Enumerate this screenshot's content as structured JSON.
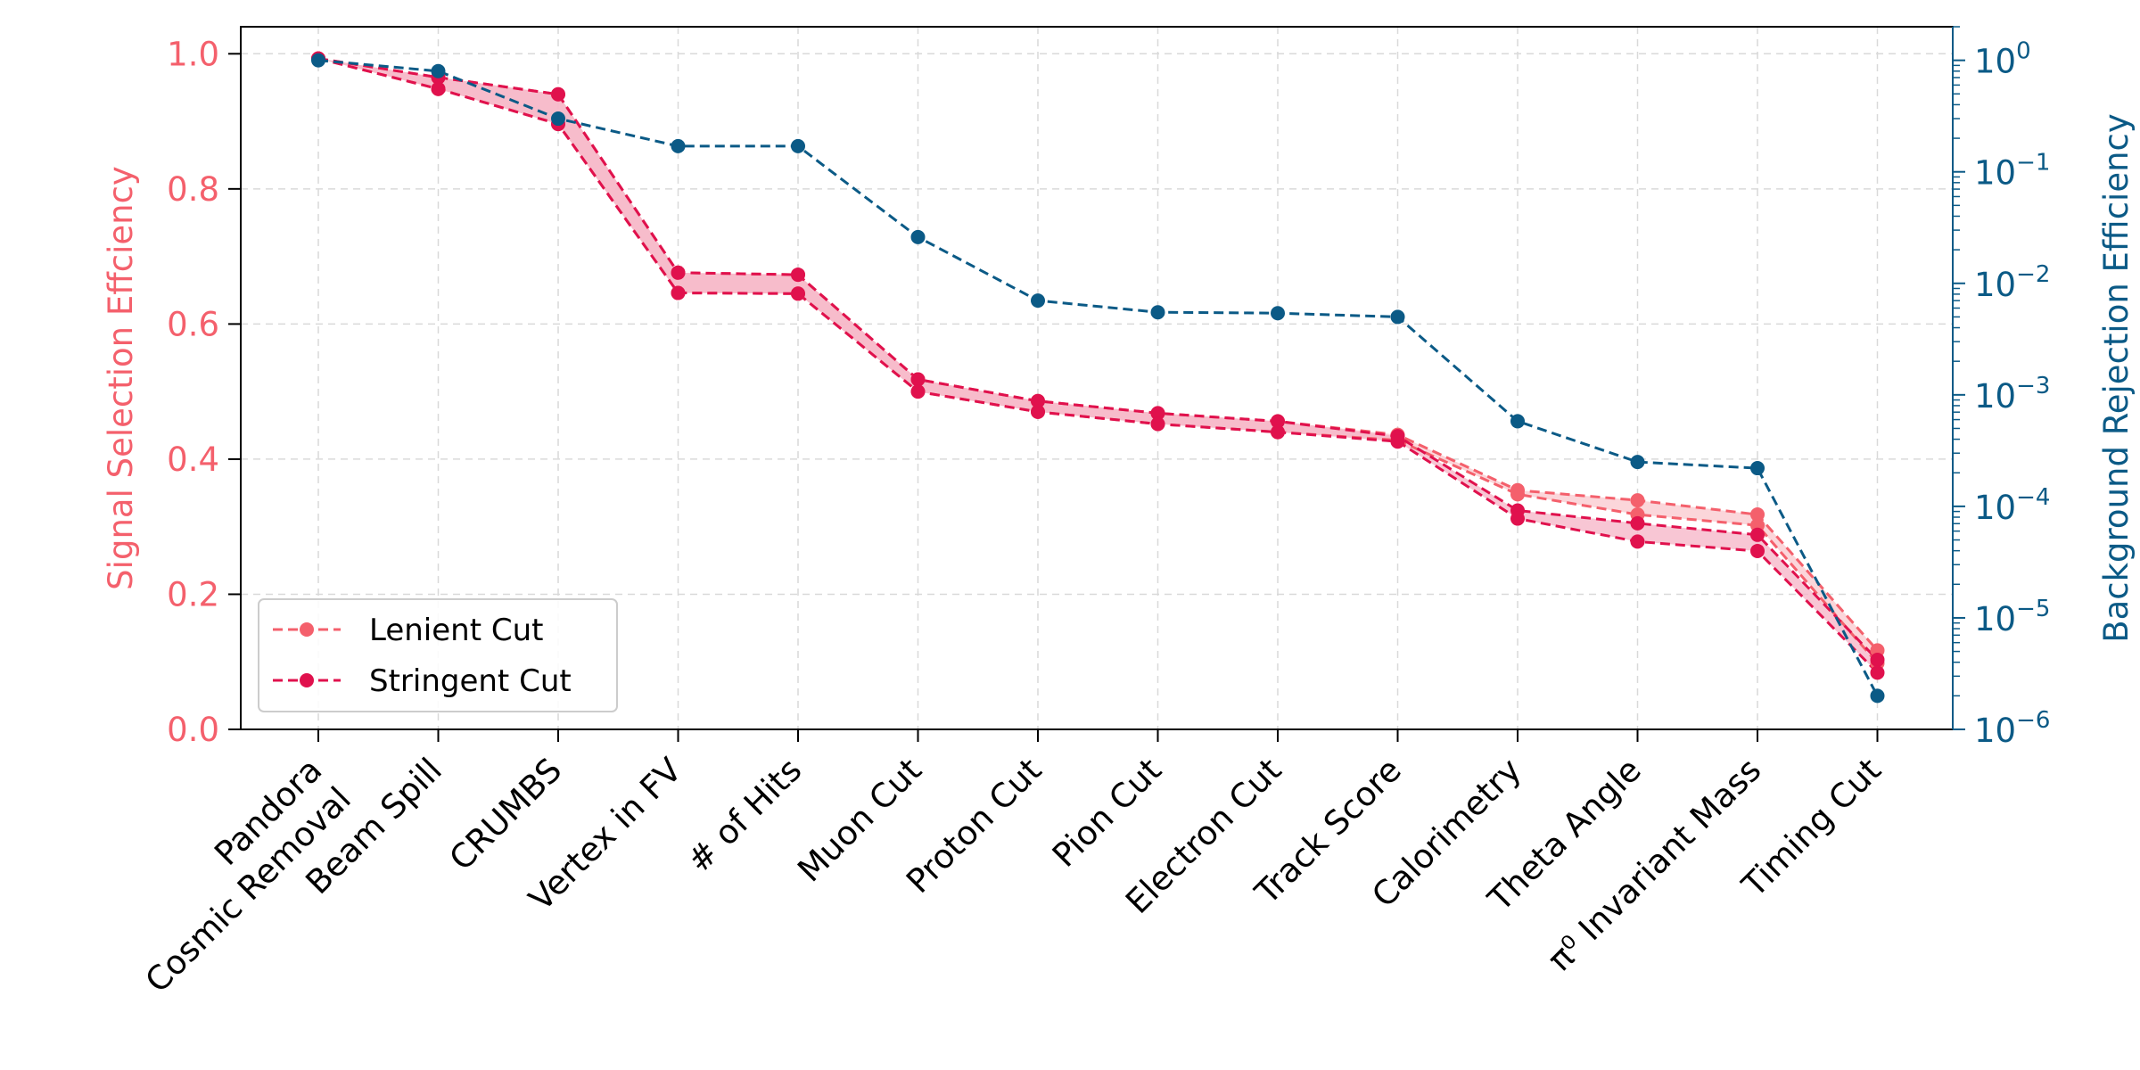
{
  "chart_data": {
    "type": "line",
    "categories": [
      "Pandora\nCosmic Removal",
      "Beam Spill",
      "CRUMBS",
      "Vertex in FV",
      "# of Hits",
      "Muon Cut",
      "Proton Cut",
      "Pion Cut",
      "Electron Cut",
      "Track Score",
      "Calorimetry",
      "Theta Angle",
      "π⁰ Invariant Mass",
      "Timing Cut"
    ],
    "ylabel_left": "Signal Selection Effciency",
    "ylabel_right": "Background Rejection Efficiency",
    "ylim_left": [
      0,
      1.04
    ],
    "left_ticks": [
      0.0,
      0.2,
      0.4,
      0.6,
      0.8,
      1.0
    ],
    "left_tick_labels": [
      "0.0",
      "0.2",
      "0.4",
      "0.6",
      "0.8",
      "1.0"
    ],
    "right_scale": "log",
    "ylim_right": [
      1e-06,
      2.0
    ],
    "right_ticks": [
      1e-06,
      1e-05,
      0.0001,
      0.001,
      0.01,
      0.1,
      1.0
    ],
    "right_tick_labels": [
      {
        "base": "10",
        "exp": "−6"
      },
      {
        "base": "10",
        "exp": "−5"
      },
      {
        "base": "10",
        "exp": "−4"
      },
      {
        "base": "10",
        "exp": "−3"
      },
      {
        "base": "10",
        "exp": "−2"
      },
      {
        "base": "10",
        "exp": "−1"
      },
      {
        "base": "10",
        "exp": "0"
      }
    ],
    "grid": true,
    "legend_position": "lower-left",
    "series": [
      {
        "name": "Lenient Cut",
        "axis": "left",
        "color": "#f4606c",
        "band_color": "#f9c8cd",
        "upper": [
          0.993,
          0.965,
          0.94,
          0.676,
          0.673,
          0.518,
          0.486,
          0.468,
          0.456,
          0.436,
          0.354,
          0.339,
          0.318,
          0.117
        ],
        "lower": [
          0.993,
          0.948,
          0.896,
          0.646,
          0.645,
          0.5,
          0.47,
          0.452,
          0.44,
          0.428,
          0.348,
          0.318,
          0.302,
          0.098
        ]
      },
      {
        "name": "Stringent Cut",
        "axis": "left",
        "color": "#e0114d",
        "band_color": "#f5b3c6",
        "upper": [
          0.993,
          0.965,
          0.94,
          0.676,
          0.673,
          0.518,
          0.486,
          0.468,
          0.456,
          0.434,
          0.324,
          0.305,
          0.288,
          0.103
        ],
        "lower": [
          0.993,
          0.948,
          0.896,
          0.646,
          0.645,
          0.5,
          0.47,
          0.452,
          0.44,
          0.426,
          0.312,
          0.278,
          0.264,
          0.084
        ]
      },
      {
        "axis": "right",
        "color": "#0b5a86",
        "values": [
          1.0,
          0.8,
          0.3,
          0.17,
          0.17,
          0.026,
          0.007,
          0.0055,
          0.0054,
          0.005,
          0.00058,
          0.00025,
          0.00022,
          2e-06
        ]
      }
    ]
  },
  "colors": {
    "left_axis": "#f4606c",
    "right_axis": "#0b5a86",
    "grid": "#d9d9d9",
    "frame": "#000000"
  }
}
